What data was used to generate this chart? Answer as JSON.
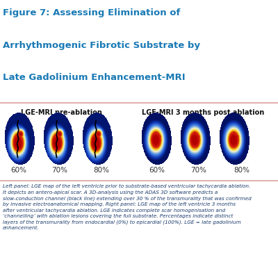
{
  "title_line1": "Figure 7: Assessing Elimination of",
  "title_line2": "Arrhythmogenic Fibrotic Substrate by",
  "title_line3": "Late Gadolinium Enhancement-MRI",
  "title_color": "#1a7ab5",
  "left_panel_label": "LGE-MRI pre-ablation",
  "right_panel_label": "LGE-MRI 3 months post ablation",
  "left_pct_labels": [
    "60%",
    "70%",
    "80%"
  ],
  "right_pct_labels": [
    "60%",
    "70%",
    "80%"
  ],
  "caption_color": "#1a3a6b",
  "bg_color": "#ffffff",
  "panel_bg": "#f0eded",
  "border_color": "#dca0a0",
  "label_color": "#111111",
  "pct_color": "#333333",
  "title_fontsize": 9.5,
  "label_fontsize": 7.0,
  "pct_fontsize": 7.5,
  "caption_fontsize": 5.2
}
